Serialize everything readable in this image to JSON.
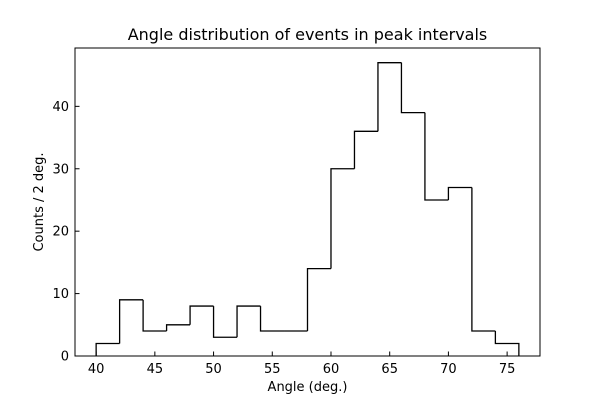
{
  "chart_data": {
    "type": "histogram",
    "title": "Angle distribution of events in peak intervals",
    "xlabel": "Angle (deg.)",
    "ylabel": "Counts / 2 deg.",
    "xlim": [
      38.2,
      77.8
    ],
    "ylim": [
      0,
      49.35
    ],
    "xticks": [
      40,
      45,
      50,
      55,
      60,
      65,
      70,
      75
    ],
    "yticks": [
      0,
      10,
      20,
      30,
      40
    ],
    "bin_width": 2,
    "bin_edges": [
      40,
      42,
      44,
      46,
      48,
      50,
      52,
      54,
      56,
      58,
      60,
      62,
      64,
      66,
      68,
      70,
      72,
      74,
      76
    ],
    "counts": [
      2,
      9,
      4,
      5,
      8,
      3,
      8,
      4,
      4,
      14,
      30,
      36,
      47,
      39,
      25,
      27,
      4,
      2
    ],
    "line_color": "#000000",
    "grid": false,
    "legend": false
  }
}
